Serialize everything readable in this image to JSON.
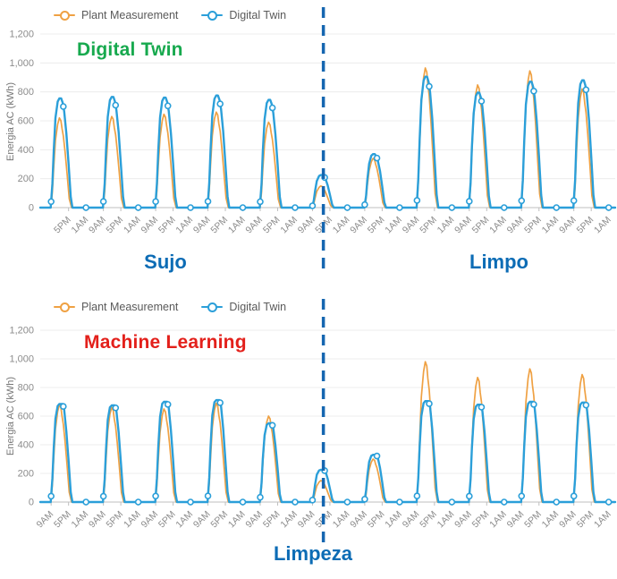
{
  "colors": {
    "plant": "#EFA143",
    "model": "#2B9FD9",
    "divider": "#1566B0",
    "grid": "#ECECEC",
    "axis_line": "#BFBFBF",
    "tick_text": "#8C8C8C",
    "region_label": "#0C6CB5"
  },
  "chart_data": [
    {
      "type": "line",
      "annotation_title": "Digital Twin",
      "annotation_color": "#17A94E",
      "legend": [
        {
          "label": "Plant Measurement",
          "color": "#EFA143"
        },
        {
          "label": "Digital Twin",
          "color": "#2B9FD9"
        }
      ],
      "ylabel": "Energia AC (kWh)",
      "ylim": [
        0,
        1200
      ],
      "ytick_labels": [
        "0",
        "200",
        "400",
        "600",
        "800",
        "1,000",
        "1,200"
      ],
      "x_axis": {
        "unit": "hours",
        "start_hour": 4,
        "end_hour": 268,
        "tick_first_hour": 17,
        "tick_interval_hours": 8,
        "tick_count": 32,
        "tick_labels_cycle": [
          "5PM",
          "1AM",
          "9AM"
        ]
      },
      "days": 11,
      "series": [
        {
          "name": "Plant Measurement",
          "color": "#EFA143",
          "width": 1.7,
          "daily_peak_kwh": [
            620,
            630,
            645,
            660,
            590,
            150,
            340,
            965,
            848,
            945,
            820
          ],
          "day_profile_hours": [
            8.9,
            9.6,
            10.2,
            11,
            12,
            12.8,
            13.5,
            14,
            14.6,
            15.4,
            16.3,
            17.3,
            18.4
          ],
          "day_profile_factors": [
            0,
            0.18,
            0.45,
            0.75,
            0.93,
            1.0,
            0.97,
            0.88,
            0.8,
            0.62,
            0.38,
            0.1,
            0
          ]
        },
        {
          "name": "Digital Twin",
          "color": "#2B9FD9",
          "width": 2.4,
          "markers": true,
          "marker_hours": [
            1,
            9,
            14.6
          ],
          "daily_peak_kwh": [
            755,
            765,
            760,
            775,
            745,
            225,
            370,
            905,
            795,
            870,
            880
          ],
          "day_profile_hours": [
            8.8,
            9.6,
            10.2,
            11,
            12,
            12.8,
            13.6,
            14.3,
            15,
            16,
            17,
            18,
            18.8
          ],
          "day_profile_factors": [
            0,
            0.22,
            0.52,
            0.82,
            0.97,
            1.0,
            1.0,
            0.96,
            0.88,
            0.68,
            0.4,
            0.1,
            0
          ]
        }
      ],
      "divider": {
        "hour": 134,
        "style": "dashed",
        "color": "#1566B0"
      },
      "region_labels": [
        {
          "text": "Sujo"
        },
        {
          "text": "Limpo"
        }
      ]
    },
    {
      "type": "line",
      "annotation_title": "Machine Learning",
      "annotation_color": "#E3201B",
      "legend": [
        {
          "label": "Plant Measurement",
          "color": "#EFA143"
        },
        {
          "label": "Digital Twin",
          "color": "#2B9FD9"
        }
      ],
      "ylabel": "Energia AC (kWh)",
      "ylim": [
        0,
        1200
      ],
      "ytick_labels": [
        "0",
        "200",
        "400",
        "600",
        "800",
        "1,000",
        "1,200"
      ],
      "x_axis": {
        "unit": "hours",
        "start_hour": 4,
        "end_hour": 268,
        "tick_first_hour": 9,
        "tick_interval_hours": 8,
        "tick_count": 33,
        "tick_labels_cycle": [
          "9AM",
          "5PM",
          "1AM"
        ]
      },
      "days": 11,
      "series": [
        {
          "name": "Plant Measurement",
          "color": "#EFA143",
          "width": 1.7,
          "daily_peak_kwh": [
            680,
            660,
            650,
            690,
            600,
            150,
            300,
            980,
            870,
            930,
            890
          ],
          "day_profile_hours": [
            8.9,
            9.6,
            10.2,
            11,
            12,
            12.8,
            13.5,
            14,
            14.6,
            15.4,
            16.3,
            17.3,
            18.4
          ],
          "day_profile_factors": [
            0,
            0.18,
            0.45,
            0.75,
            0.93,
            1.0,
            0.97,
            0.88,
            0.8,
            0.62,
            0.38,
            0.1,
            0
          ]
        },
        {
          "name": "Digital Twin",
          "color": "#2B9FD9",
          "width": 2.4,
          "markers": true,
          "marker_hours": [
            1,
            9,
            14.6
          ],
          "daily_peak_kwh": [
            685,
            675,
            700,
            712,
            550,
            225,
            330,
            705,
            680,
            700,
            695
          ],
          "day_profile_hours": [
            8.8,
            9.6,
            10.2,
            11,
            12,
            12.8,
            13.6,
            14.3,
            15,
            16,
            17,
            18,
            18.8
          ],
          "day_profile_factors": [
            0,
            0.24,
            0.55,
            0.85,
            0.98,
            1.0,
            1.0,
            1.0,
            0.94,
            0.72,
            0.42,
            0.1,
            0
          ]
        }
      ],
      "divider": {
        "hour": 134,
        "style": "dashed",
        "color": "#1566B0"
      },
      "region_labels": [
        {
          "text": "Limpeza"
        }
      ]
    }
  ]
}
